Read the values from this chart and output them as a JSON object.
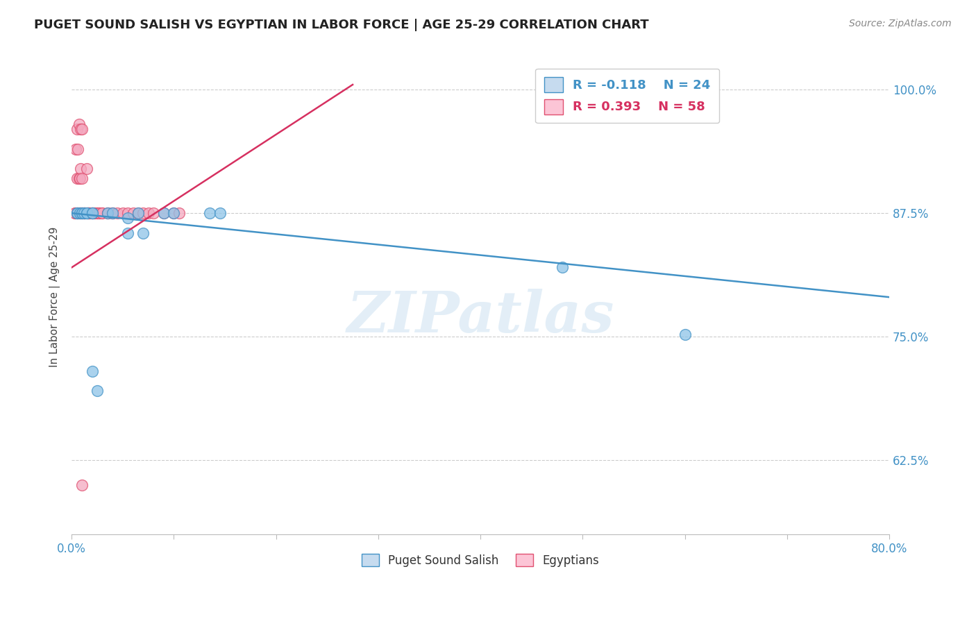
{
  "title": "PUGET SOUND SALISH VS EGYPTIAN IN LABOR FORCE | AGE 25-29 CORRELATION CHART",
  "source": "Source: ZipAtlas.com",
  "ylabel": "In Labor Force | Age 25-29",
  "xlim": [
    0.0,
    0.8
  ],
  "ylim": [
    0.55,
    1.03
  ],
  "yticks": [
    0.625,
    0.75,
    0.875,
    1.0
  ],
  "yticklabels": [
    "62.5%",
    "75.0%",
    "87.5%",
    "100.0%"
  ],
  "blue_R": -0.118,
  "blue_N": 24,
  "pink_R": 0.393,
  "pink_N": 58,
  "blue_scatter_x": [
    0.005,
    0.005,
    0.008,
    0.01,
    0.01,
    0.012,
    0.015,
    0.015,
    0.02,
    0.02,
    0.035,
    0.04,
    0.055,
    0.055,
    0.065,
    0.07,
    0.09,
    0.1,
    0.135,
    0.145,
    0.48,
    0.6,
    0.02,
    0.025
  ],
  "blue_scatter_y": [
    0.875,
    0.875,
    0.875,
    0.875,
    0.875,
    0.875,
    0.875,
    0.875,
    0.875,
    0.875,
    0.875,
    0.875,
    0.855,
    0.87,
    0.875,
    0.855,
    0.875,
    0.875,
    0.875,
    0.875,
    0.82,
    0.752,
    0.715,
    0.695
  ],
  "pink_scatter_x": [
    0.003,
    0.003,
    0.004,
    0.005,
    0.005,
    0.005,
    0.006,
    0.006,
    0.007,
    0.007,
    0.007,
    0.008,
    0.008,
    0.009,
    0.009,
    0.009,
    0.01,
    0.01,
    0.01,
    0.01,
    0.012,
    0.012,
    0.013,
    0.013,
    0.015,
    0.015,
    0.016,
    0.016,
    0.017,
    0.017,
    0.018,
    0.02,
    0.02,
    0.02,
    0.022,
    0.022,
    0.025,
    0.025,
    0.027,
    0.027,
    0.03,
    0.03,
    0.035,
    0.035,
    0.04,
    0.04,
    0.045,
    0.05,
    0.055,
    0.06,
    0.065,
    0.07,
    0.075,
    0.08,
    0.09,
    0.1,
    0.105,
    0.01
  ],
  "pink_scatter_y": [
    0.875,
    0.875,
    0.94,
    0.875,
    0.91,
    0.96,
    0.875,
    0.94,
    0.875,
    0.91,
    0.965,
    0.875,
    0.91,
    0.875,
    0.92,
    0.96,
    0.875,
    0.875,
    0.91,
    0.96,
    0.875,
    0.875,
    0.875,
    0.875,
    0.875,
    0.92,
    0.875,
    0.875,
    0.875,
    0.875,
    0.875,
    0.875,
    0.875,
    0.875,
    0.875,
    0.875,
    0.875,
    0.875,
    0.875,
    0.875,
    0.875,
    0.875,
    0.875,
    0.875,
    0.875,
    0.875,
    0.875,
    0.875,
    0.875,
    0.875,
    0.875,
    0.875,
    0.875,
    0.875,
    0.875,
    0.875,
    0.875,
    0.6
  ],
  "blue_line_x": [
    0.0,
    0.8
  ],
  "blue_line_y": [
    0.875,
    0.79
  ],
  "pink_line_x": [
    0.0,
    0.275
  ],
  "pink_line_y": [
    0.82,
    1.005
  ],
  "blue_color": "#8ec4e8",
  "pink_color": "#f4a8bf",
  "blue_edge_color": "#4292c6",
  "pink_edge_color": "#e05070",
  "blue_line_color": "#4292c6",
  "pink_line_color": "#d63060",
  "legend_box_color_blue": "#c6dbef",
  "legend_box_color_pink": "#fcc5d6",
  "watermark": "ZIPatlas",
  "background_color": "#ffffff",
  "grid_color": "#cccccc"
}
